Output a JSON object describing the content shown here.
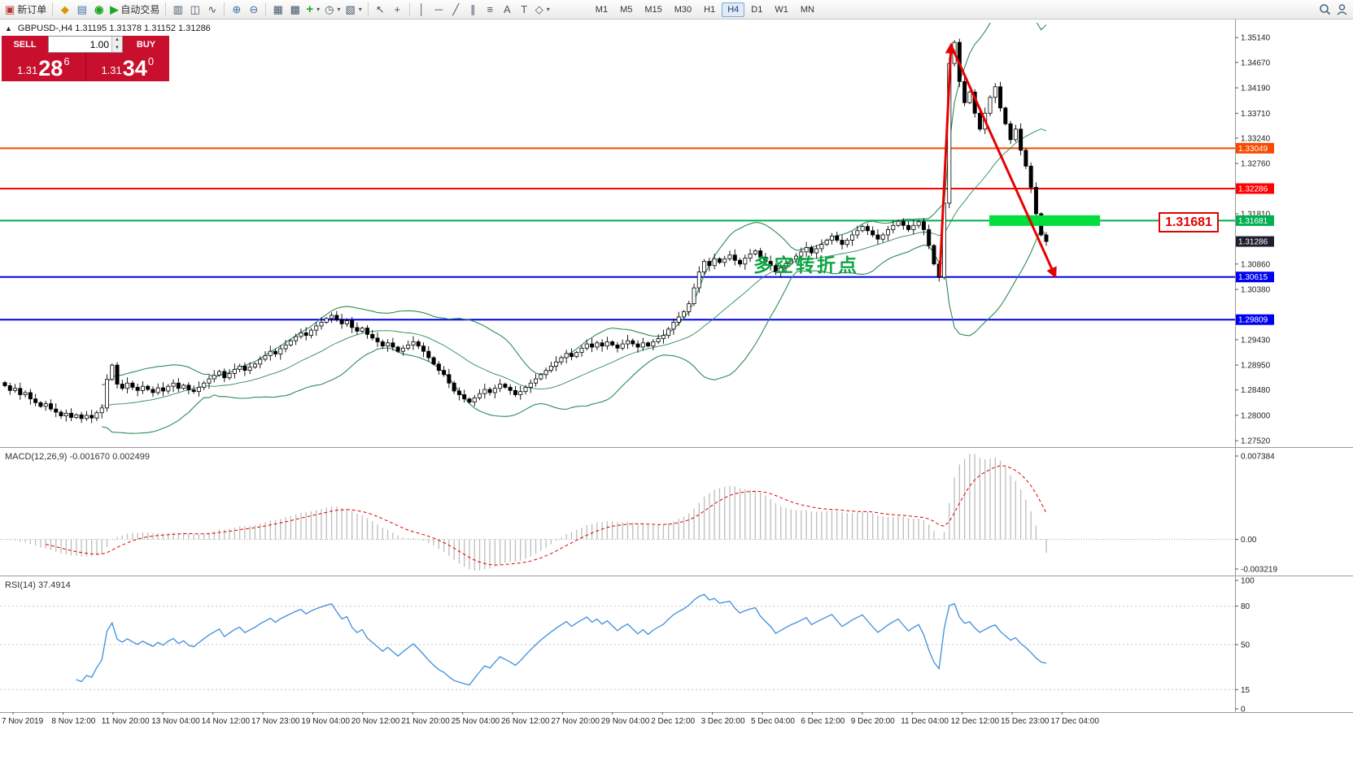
{
  "toolbar": {
    "new_order": "新订单",
    "autotrading": "自动交易",
    "timeframes": [
      "M1",
      "M5",
      "M15",
      "M30",
      "H1",
      "H4",
      "D1",
      "W1",
      "MN"
    ],
    "active_timeframe": "H4"
  },
  "icons": {
    "new_order": "▣",
    "metaeditor": "◆",
    "market_watch": "▤",
    "navigator": "◉",
    "autotrading": "▶",
    "chart_bars": "▥",
    "chart_candles": "◫",
    "chart_line": "∿",
    "zoom_in": "⊕",
    "zoom_out": "⊖",
    "tile_windows": "▦",
    "auto_arrange": "▩",
    "indicators": "+",
    "periods": "◷",
    "templates": "▧",
    "cursor": "↖",
    "crosshair": "+",
    "vline": "│",
    "hline": "─",
    "trendline": "╱",
    "channel": "∥",
    "fibonacci": "≡",
    "text": "A",
    "text_label": "T",
    "arrows_tool": "◇",
    "caret": "▾",
    "collapse": "▲",
    "spin_up": "▲",
    "spin_down": "▼"
  },
  "chart": {
    "title_line": "GBPUSD-,H4 1.31195 1.31378 1.31152 1.31286",
    "trade_panel": {
      "sell_label": "SELL",
      "buy_label": "BUY",
      "volume": "1.00",
      "sell_price_prefix": "1.31",
      "sell_price_big": "28",
      "sell_price_sup": "6",
      "buy_price_prefix": "1.31",
      "buy_price_big": "34",
      "buy_price_sup": "0"
    }
  },
  "indicators": {
    "macd_label": "MACD(12,26,9) -0.001670 0.002499",
    "rsi_label": "RSI(14) 37.4914"
  },
  "chart_data": {
    "type": "candlestick",
    "symbol": "GBPUSD-",
    "timeframe": "H4",
    "ohlc_display": {
      "open": "1.31195",
      "high": "1.31378",
      "low": "1.31152",
      "close": "1.31286"
    },
    "y_range": [
      1.274,
      1.3542
    ],
    "closes": [
      1.2856,
      1.2847,
      1.2851,
      1.2839,
      1.2843,
      1.2831,
      1.2824,
      1.2817,
      1.2822,
      1.2812,
      1.2806,
      1.2799,
      1.2804,
      1.2796,
      1.2801,
      1.2794,
      1.28,
      1.2795,
      1.2805,
      1.2814,
      1.2868,
      1.2895,
      1.2859,
      1.2851,
      1.2861,
      1.2853,
      1.2847,
      1.2855,
      1.2849,
      1.2843,
      1.2852,
      1.2846,
      1.2855,
      1.2861,
      1.2851,
      1.2857,
      1.2848,
      1.2845,
      1.2853,
      1.2861,
      1.2869,
      1.2876,
      1.2883,
      1.2871,
      1.2879,
      1.2887,
      1.2893,
      1.2885,
      1.2891,
      1.2897,
      1.2906,
      1.2913,
      1.2921,
      1.2916,
      1.2926,
      1.2933,
      1.2941,
      1.2949,
      1.2956,
      1.2951,
      1.2961,
      1.2969,
      1.2976,
      1.2983,
      1.2989,
      1.2981,
      1.2973,
      1.2979,
      1.2966,
      1.2959,
      1.2965,
      1.2953,
      1.2946,
      1.2939,
      1.2931,
      1.2937,
      1.2929,
      1.2921,
      1.2927,
      1.2933,
      1.2939,
      1.2931,
      1.2921,
      1.2909,
      1.2897,
      1.2885,
      1.2877,
      1.2861,
      1.2846,
      1.2839,
      1.2831,
      1.2825,
      1.2833,
      1.2841,
      1.2849,
      1.2843,
      1.2851,
      1.2859,
      1.2853,
      1.2847,
      1.2839,
      1.2845,
      1.2853,
      1.2861,
      1.2869,
      1.2877,
      1.2885,
      1.2893,
      1.2901,
      1.2909,
      1.2917,
      1.2911,
      1.2919,
      1.2927,
      1.2935,
      1.2929,
      1.2937,
      1.2931,
      1.2939,
      1.2933,
      1.2927,
      1.2935,
      1.2941,
      1.2935,
      1.2929,
      1.2937,
      1.2931,
      1.2939,
      1.2945,
      1.2951,
      1.2963,
      1.2976,
      1.2986,
      1.2996,
      1.3011,
      1.3041,
      1.3071,
      1.3091,
      1.3083,
      1.3096,
      1.3089,
      1.3096,
      1.3103,
      1.3093,
      1.3086,
      1.3097,
      1.3105,
      1.3111,
      1.3099,
      1.3091,
      1.3083,
      1.3071,
      1.3079,
      1.3087,
      1.3095,
      1.3101,
      1.3109,
      1.3117,
      1.3107,
      1.3115,
      1.3123,
      1.3131,
      1.3139,
      1.3131,
      1.3123,
      1.3131,
      1.3141,
      1.3149,
      1.3157,
      1.3149,
      1.3141,
      1.3133,
      1.3141,
      1.3151,
      1.3159,
      1.3167,
      1.3159,
      1.3151,
      1.3159,
      1.3166,
      1.3151,
      1.3121,
      1.3086,
      1.3061,
      1.3201,
      1.3465,
      1.3505,
      1.3431,
      1.3391,
      1.3411,
      1.3371,
      1.3341,
      1.3371,
      1.3401,
      1.3421,
      1.3381,
      1.3351,
      1.3321,
      1.3341,
      1.3301,
      1.3271,
      1.3231,
      1.3181,
      1.3141,
      1.31286
    ],
    "candle_colors": {
      "up": "#ffffff",
      "down": "#000000",
      "wick": "#000000"
    },
    "y_axis_ticks": [
      "1.35140",
      "1.34670",
      "1.34190",
      "1.33710",
      "1.33240",
      "1.32760",
      "1.31810",
      "1.30860",
      "1.30380",
      "1.29430",
      "1.28950",
      "1.28480",
      "1.28000",
      "1.27520"
    ],
    "levels": [
      {
        "price": 1.33049,
        "label": "1.33049",
        "color": "#f84a00"
      },
      {
        "price": 1.32286,
        "label": "1.32286",
        "color": "#ff0000"
      },
      {
        "price": 1.31681,
        "label": "1.31681",
        "color": "#00b050"
      },
      {
        "price": 1.31286,
        "label": "1.31286",
        "color": "#1e1e2d",
        "style": "current"
      },
      {
        "price": 1.30615,
        "label": "1.30615",
        "color": "#0000f0"
      },
      {
        "price": 1.29809,
        "label": "1.29809",
        "color": "#0000f0"
      }
    ],
    "x_ticks": [
      "7 Nov 2019",
      "8 Nov 12:00",
      "11 Nov 20:00",
      "13 Nov 04:00",
      "14 Nov 12:00",
      "17 Nov 23:00",
      "19 Nov 04:00",
      "20 Nov 12:00",
      "21 Nov 20:00",
      "25 Nov 04:00",
      "26 Nov 12:00",
      "27 Nov 20:00",
      "29 Nov 04:00",
      "2 Dec 12:00",
      "3 Dec 20:00",
      "5 Dec 04:00",
      "6 Dec 12:00",
      "9 Dec 20:00",
      "11 Dec 04:00",
      "12 Dec 12:00",
      "15 Dec 23:00",
      "17 Dec 04:00"
    ],
    "bollinger": {
      "period": 20,
      "deviation": 2,
      "color": "#2e8b57"
    },
    "macd": {
      "fast": 12,
      "slow": 26,
      "signal": 9,
      "hist_color": "#bdbdbd",
      "signal_color": "#e00000",
      "ticks": [
        "0.007384",
        "0.00",
        "-0.003219"
      ]
    },
    "rsi": {
      "period": 14,
      "color": "#3f8ede",
      "levels": [
        80,
        50,
        15
      ],
      "ticks": [
        100,
        80,
        50,
        15,
        0
      ]
    },
    "annotation": {
      "text": "多空转折点",
      "color": "#0ca644"
    },
    "callout": {
      "text": "1.31681",
      "color": "#e60000"
    },
    "highlight_box": {
      "price": 1.31681,
      "color": "#00dd3c"
    },
    "arrow_color": "#e60000"
  }
}
